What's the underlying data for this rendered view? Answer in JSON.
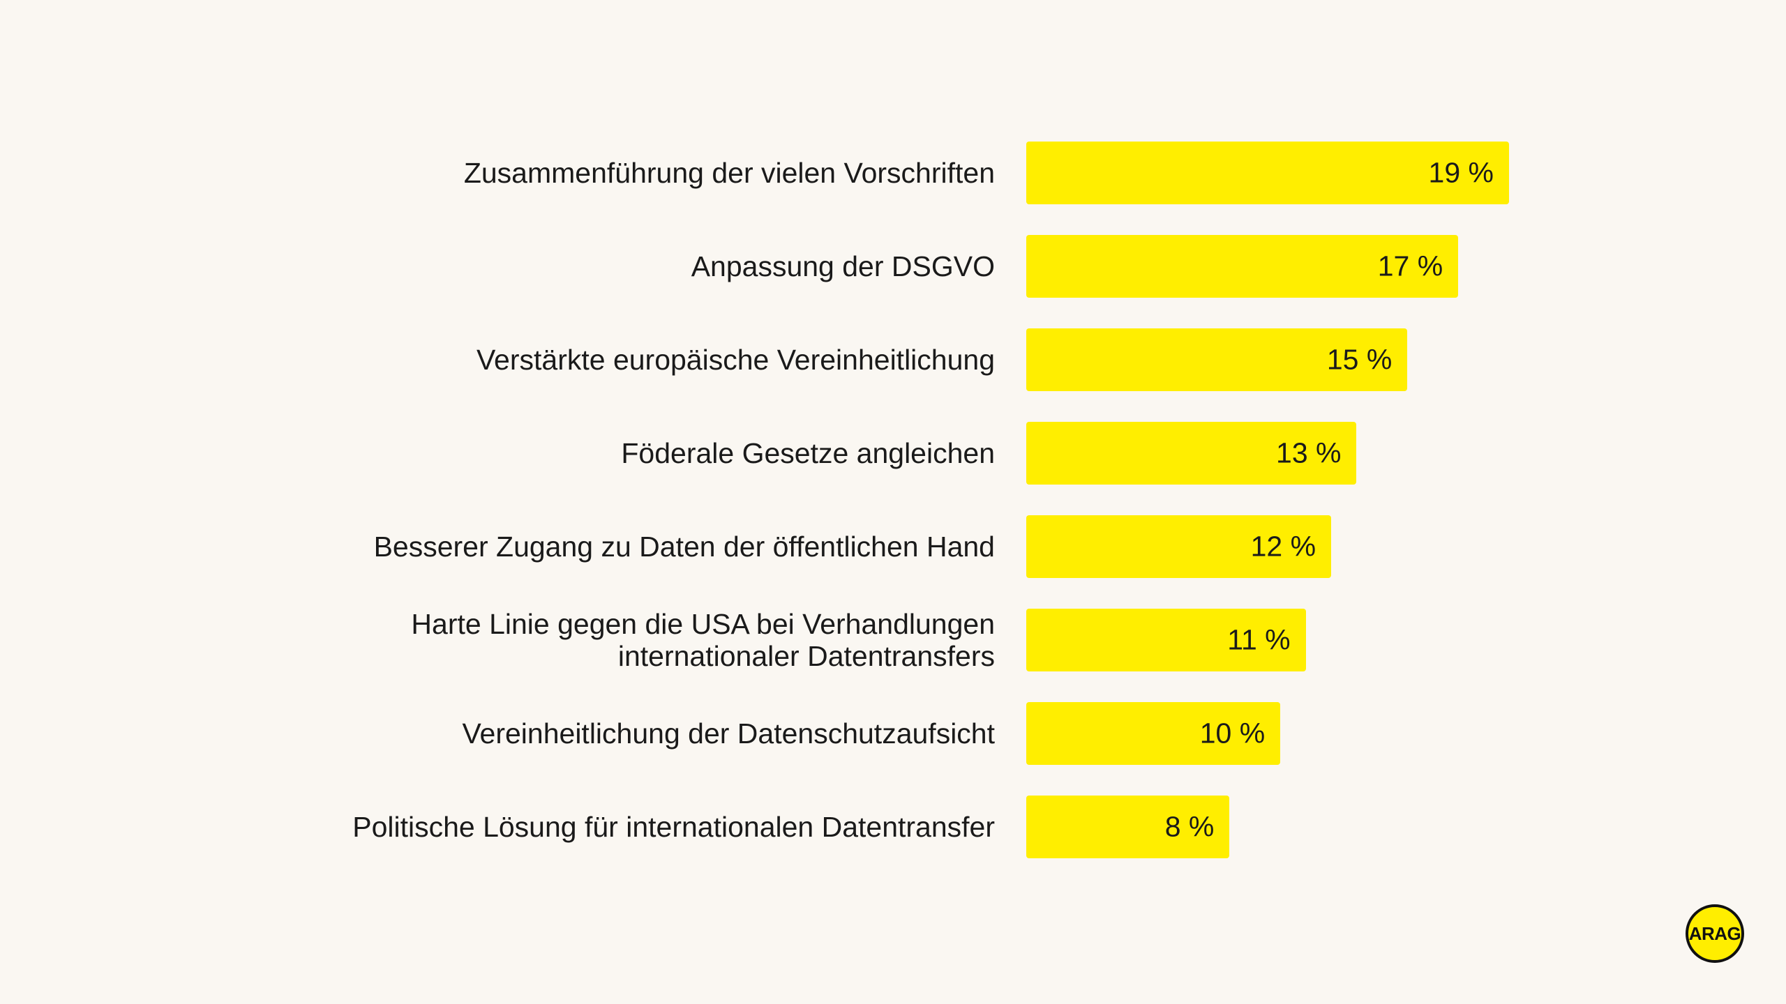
{
  "colors": {
    "background": "#faf7f2",
    "bar": "#ffee00",
    "text": "#1a1a1a",
    "logo_fill": "#ffee00",
    "logo_ring": "#111111"
  },
  "logo": {
    "text": "ARAG"
  },
  "chart_data": {
    "type": "bar",
    "orientation": "horizontal",
    "title": "",
    "xlabel": "",
    "ylabel": "",
    "xlim": [
      0,
      19
    ],
    "grid": false,
    "categories": [
      "Zusammenführung der vielen Vorschriften",
      "Anpassung der DSGVO",
      "Verstärkte europäische Vereinheitlichung",
      "Föderale Gesetze angleichen",
      "Besserer Zugang zu Daten der öffentlichen Hand",
      "Harte Linie gegen die USA bei Verhandlungen\ninternationaler Datentransfers",
      "Vereinheitlichung der Datenschutzaufsicht",
      "Politische Lösung für internationalen Datentransfer"
    ],
    "values": [
      19,
      17,
      15,
      13,
      12,
      11,
      10,
      8
    ],
    "value_labels": [
      "19 %",
      "17 %",
      "15 %",
      "13 %",
      "12 %",
      "11 %",
      "10 %",
      "8 %"
    ]
  }
}
